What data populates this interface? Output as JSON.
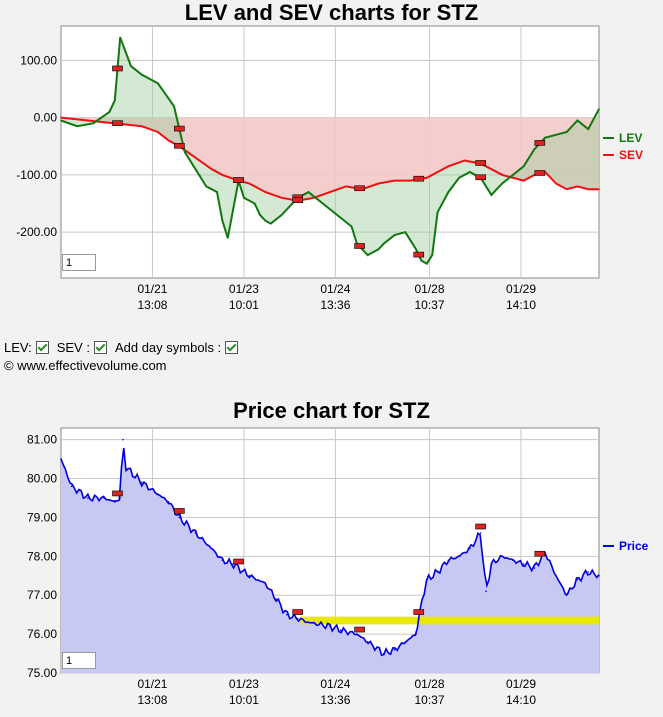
{
  "lev_chart": {
    "title": "LEV and SEV charts for STZ",
    "zoom_value": "1",
    "legend": [
      {
        "label": "LEV",
        "color": "#117711"
      },
      {
        "label": "SEV",
        "color": "#ee1111"
      }
    ]
  },
  "controls": {
    "lev_label": "LEV:",
    "sev_label": "SEV :",
    "day_symbols_label": "Add day symbols :"
  },
  "copyright": "© www.effectivevolume.com",
  "price_chart": {
    "title": "Price chart for STZ",
    "zoom_value": "1",
    "legend": [
      {
        "label": "Price",
        "color": "#0000dd"
      }
    ]
  },
  "chart_data": [
    {
      "type": "line",
      "title": "LEV and SEV charts for STZ",
      "ylim": [
        -280,
        160
      ],
      "yticks": [
        "100.00",
        "0.00",
        "-100.00",
        "-200.00"
      ],
      "ytick_values": [
        100,
        0,
        -100,
        -200
      ],
      "xtick_labels": [
        [
          "01/21",
          "13:08"
        ],
        [
          "01/23",
          "10:01"
        ],
        [
          "01/24",
          "13:36"
        ],
        [
          "01/28",
          "10:37"
        ],
        [
          "01/29",
          "14:10"
        ]
      ],
      "xtick_positions": [
        0.17,
        0.34,
        0.51,
        0.685,
        0.855
      ],
      "grid": true,
      "legend_position": "right",
      "series": [
        {
          "name": "LEV",
          "color": "#117711",
          "x": [
            0,
            0.03,
            0.06,
            0.09,
            0.1,
            0.11,
            0.13,
            0.15,
            0.18,
            0.21,
            0.23,
            0.25,
            0.27,
            0.29,
            0.3,
            0.31,
            0.33,
            0.34,
            0.36,
            0.37,
            0.38,
            0.39,
            0.41,
            0.43,
            0.44,
            0.46,
            0.48,
            0.5,
            0.52,
            0.54,
            0.55,
            0.57,
            0.59,
            0.6,
            0.62,
            0.64,
            0.66,
            0.67,
            0.68,
            0.69,
            0.7,
            0.72,
            0.74,
            0.76,
            0.78,
            0.8,
            0.82,
            0.84,
            0.86,
            0.88,
            0.9,
            0.92,
            0.94,
            0.96,
            0.98,
            1.0
          ],
          "values": [
            -5,
            -15,
            -10,
            10,
            30,
            140,
            90,
            75,
            60,
            20,
            -60,
            -90,
            -120,
            -130,
            -180,
            -210,
            -110,
            -140,
            -150,
            -170,
            -180,
            -185,
            -170,
            -150,
            -140,
            -130,
            -145,
            -160,
            -175,
            -190,
            -220,
            -240,
            -230,
            -220,
            -205,
            -200,
            -230,
            -250,
            -255,
            -240,
            -165,
            -130,
            -105,
            -95,
            -105,
            -135,
            -115,
            -100,
            -85,
            -55,
            -35,
            -30,
            -25,
            -5,
            -20,
            15
          ]
        },
        {
          "name": "SEV",
          "color": "#ee1111",
          "x": [
            0,
            0.05,
            0.1,
            0.15,
            0.18,
            0.2,
            0.22,
            0.25,
            0.28,
            0.3,
            0.33,
            0.35,
            0.38,
            0.41,
            0.44,
            0.47,
            0.5,
            0.53,
            0.56,
            0.59,
            0.62,
            0.65,
            0.68,
            0.7,
            0.72,
            0.75,
            0.78,
            0.8,
            0.82,
            0.84,
            0.86,
            0.88,
            0.9,
            0.92,
            0.94,
            0.96,
            0.98,
            1.0
          ],
          "values": [
            0,
            -5,
            -10,
            -15,
            -25,
            -40,
            -50,
            -70,
            -90,
            -100,
            -110,
            -115,
            -130,
            -140,
            -145,
            -140,
            -130,
            -120,
            -125,
            -115,
            -110,
            -110,
            -105,
            -95,
            -85,
            -75,
            -80,
            -90,
            -100,
            -105,
            -110,
            -100,
            -95,
            -115,
            -125,
            -120,
            -125,
            -125
          ]
        }
      ]
    },
    {
      "type": "area",
      "title": "Price chart for STZ",
      "ylim": [
        75.0,
        81.3
      ],
      "yticks": [
        "81.00",
        "80.00",
        "79.00",
        "78.00",
        "77.00",
        "76.00",
        "75.00"
      ],
      "ytick_values": [
        81,
        80,
        79,
        78,
        77,
        76,
        75
      ],
      "xtick_labels": [
        [
          "01/21",
          "13:08"
        ],
        [
          "01/23",
          "10:01"
        ],
        [
          "01/24",
          "13:36"
        ],
        [
          "01/28",
          "10:37"
        ],
        [
          "01/29",
          "14:10"
        ]
      ],
      "xtick_positions": [
        0.17,
        0.34,
        0.51,
        0.685,
        0.855
      ],
      "grid": true,
      "legend_position": "right",
      "series": [
        {
          "name": "Price",
          "color": "#0000dd",
          "x": [
            0,
            0.02,
            0.05,
            0.08,
            0.1,
            0.11,
            0.115,
            0.12,
            0.15,
            0.18,
            0.2,
            0.22,
            0.25,
            0.28,
            0.3,
            0.32,
            0.35,
            0.38,
            0.4,
            0.42,
            0.44,
            0.46,
            0.48,
            0.5,
            0.52,
            0.55,
            0.57,
            0.6,
            0.62,
            0.64,
            0.66,
            0.67,
            0.68,
            0.7,
            0.72,
            0.74,
            0.76,
            0.78,
            0.79,
            0.8,
            0.82,
            0.84,
            0.86,
            0.88,
            0.9,
            0.92,
            0.94,
            0.96,
            0.98,
            1.0
          ],
          "values": [
            80.5,
            79.8,
            79.5,
            79.5,
            79.4,
            79.5,
            81.0,
            80.3,
            79.9,
            79.6,
            79.4,
            79.0,
            78.6,
            78.2,
            77.9,
            77.8,
            77.5,
            77.3,
            76.9,
            76.5,
            76.4,
            76.3,
            76.25,
            76.2,
            76.1,
            76.0,
            75.8,
            75.5,
            75.6,
            75.8,
            76.0,
            76.8,
            77.4,
            77.6,
            77.9,
            78.0,
            78.2,
            78.6,
            77.1,
            77.8,
            78.0,
            77.9,
            77.8,
            77.7,
            78.1,
            77.5,
            77.0,
            77.4,
            77.6,
            77.5
          ]
        }
      ]
    }
  ]
}
